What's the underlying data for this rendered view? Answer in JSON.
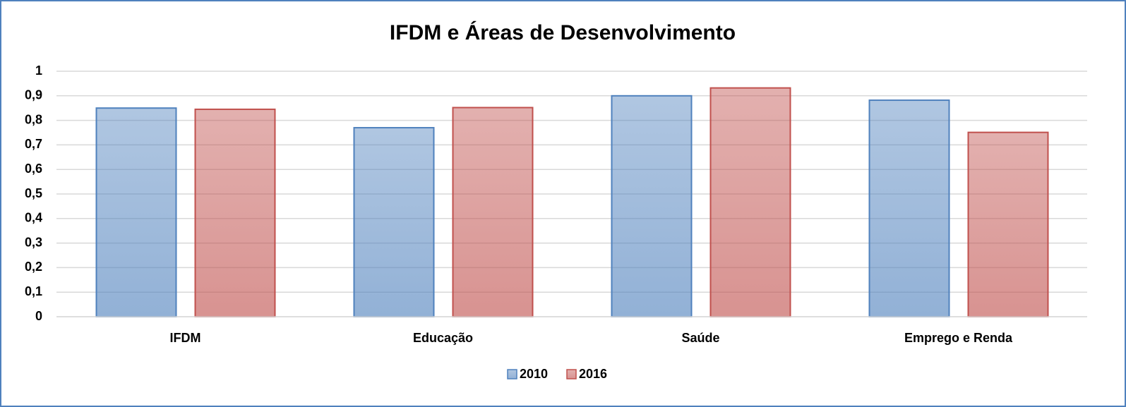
{
  "chart_data": {
    "type": "bar",
    "title": "IFDM e Áreas de Desenvolvimento",
    "categories": [
      "IFDM",
      "Educação",
      "Saúde",
      "Emprego e Renda"
    ],
    "series": [
      {
        "name": "2010",
        "color": "#4f81bd",
        "values": [
          0.85,
          0.77,
          0.9,
          0.882
        ]
      },
      {
        "name": "2016",
        "color": "#c0504d",
        "values": [
          0.845,
          0.852,
          0.932,
          0.751
        ]
      }
    ],
    "ylim": [
      0,
      1
    ],
    "yticks": [
      0,
      {
        "value": 0.1,
        "label": "0,1"
      },
      {
        "value": 0.2,
        "label": "0,2"
      },
      {
        "value": 0.3,
        "label": "0,3"
      },
      {
        "value": 0.4,
        "label": "0,4"
      },
      {
        "value": 0.5,
        "label": "0,5"
      },
      {
        "value": 0.6,
        "label": "0,6"
      },
      {
        "value": 0.7,
        "label": "0,7"
      },
      {
        "value": 0.8,
        "label": "0,8"
      },
      {
        "value": 0.9,
        "label": "0,9"
      },
      1
    ],
    "grid": true,
    "legend": "bottom"
  }
}
